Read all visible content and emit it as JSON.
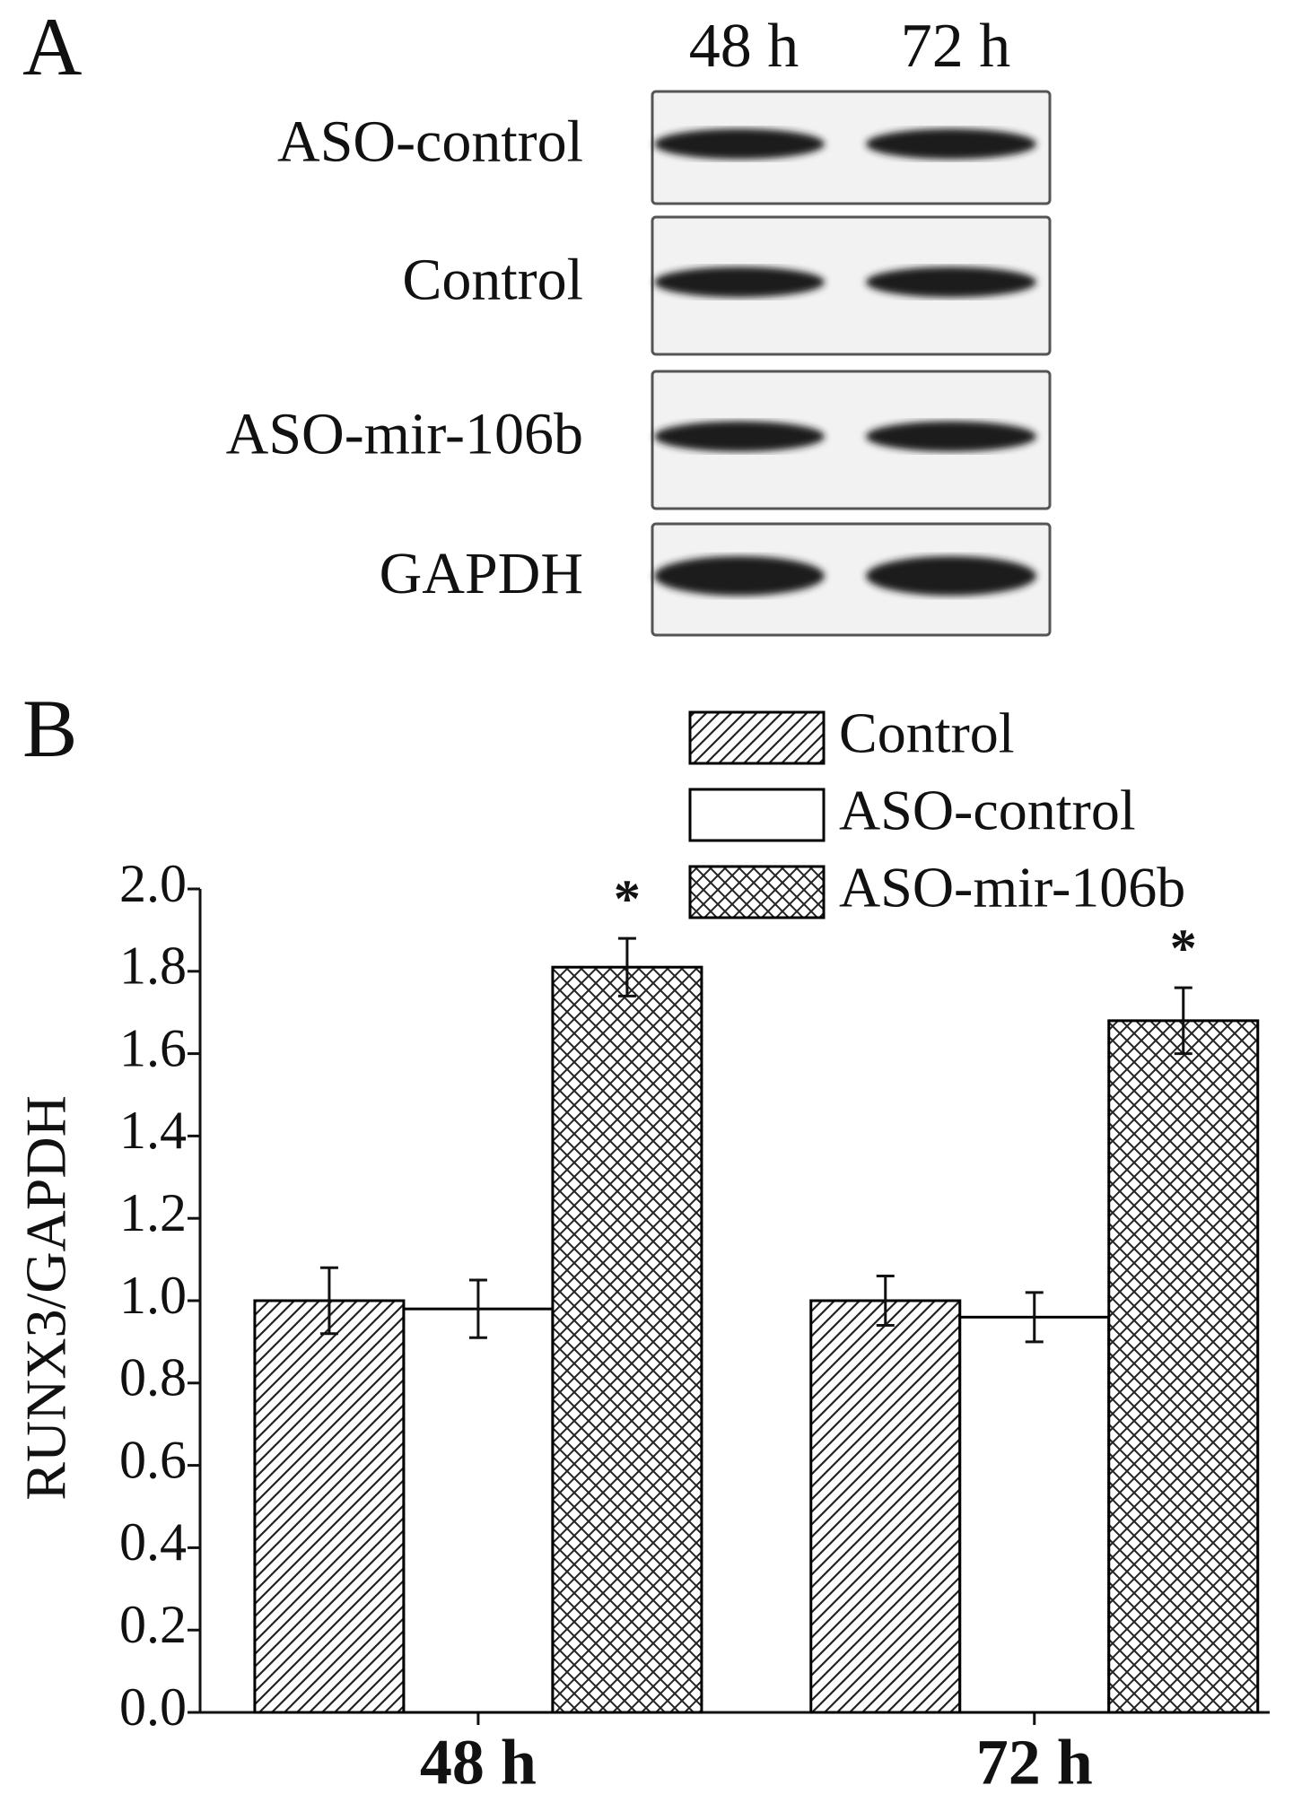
{
  "blot": {
    "panel_label": "A",
    "lanes": [
      "48 h",
      "72 h"
    ],
    "rows": [
      "ASO-control",
      "Control",
      "ASO-mir-106b",
      "GAPDH"
    ]
  },
  "chart_data": {
    "type": "bar",
    "panel_label": "B",
    "ylabel": "RUNX3/GAPDH",
    "categories": [
      "48 h",
      "72 h"
    ],
    "series": [
      {
        "name": "Control",
        "color": "#000000",
        "hatch": "diagonal",
        "values": [
          1.0,
          1.0
        ],
        "errors": [
          0.08,
          0.06
        ]
      },
      {
        "name": "ASO-control",
        "color": "#000000",
        "hatch": "none",
        "values": [
          0.98,
          0.96
        ],
        "errors": [
          0.07,
          0.06
        ]
      },
      {
        "name": "ASO-mir-106b",
        "color": "#000000",
        "hatch": "cross",
        "values": [
          1.81,
          1.68
        ],
        "errors": [
          0.07,
          0.08
        ],
        "annotations": [
          "*",
          "*"
        ]
      }
    ],
    "ylim": [
      0,
      2.0
    ],
    "yticks": [
      {
        "value": 0,
        "label": "0.0"
      },
      0.2,
      0.4,
      0.6,
      0.8,
      {
        "value": 1.0,
        "label": "1.0"
      },
      1.2,
      1.4,
      1.6,
      1.8,
      {
        "value": 2.0,
        "label": "2.0"
      }
    ],
    "legend": "upper right"
  }
}
